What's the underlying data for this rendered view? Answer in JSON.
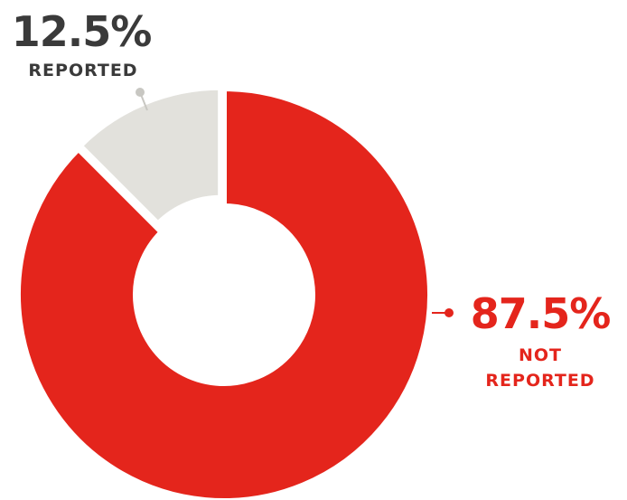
{
  "chart_data": {
    "type": "donut",
    "categories": [
      "REPORTED",
      "NOT REPORTED"
    ],
    "values": [
      12.5,
      87.5
    ],
    "value_labels": [
      "12.5%",
      "87.5%"
    ],
    "colors": [
      "#e2e1dc",
      "#e4251c"
    ]
  }
}
